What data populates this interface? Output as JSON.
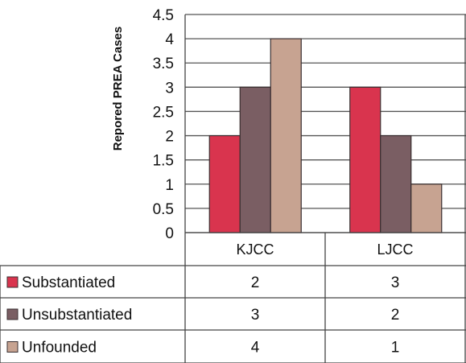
{
  "chart_data": {
    "type": "bar",
    "ylabel": "Repored PREA Cases",
    "xlabel": "",
    "ylim": [
      0,
      4.5
    ],
    "yticks": [
      "0",
      "0.5",
      "1",
      "1.5",
      "2",
      "2.5",
      "3",
      "3.5",
      "4",
      "4.5"
    ],
    "categories": [
      "KJCC",
      "LJCC"
    ],
    "series": [
      {
        "name": "Substantiated",
        "values": [
          2,
          3
        ],
        "color": "#d9344e"
      },
      {
        "name": "Unsubstantiated",
        "values": [
          3,
          2
        ],
        "color": "#7a5e63"
      },
      {
        "name": "Unfounded",
        "values": [
          4,
          1
        ],
        "color": "#c7a391"
      }
    ],
    "table": [
      [
        "2",
        "3"
      ],
      [
        "3",
        "2"
      ],
      [
        "4",
        "1"
      ]
    ],
    "grid": true,
    "legend": "data-table"
  }
}
